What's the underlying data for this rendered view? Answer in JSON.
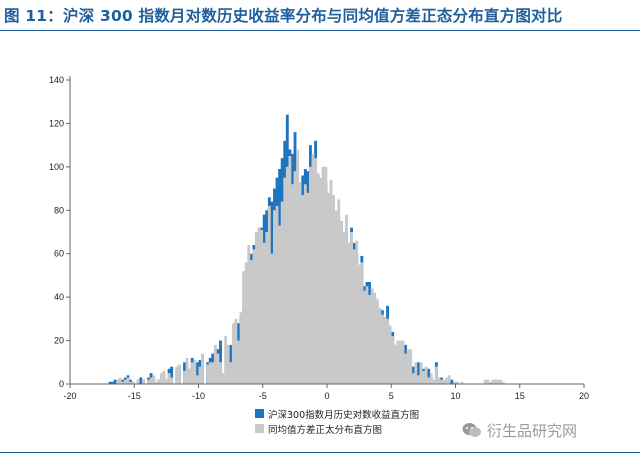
{
  "figure": {
    "title": "图 11：沪深 300 指数月对数历史收益率分布与同均值方差正态分布直方图对比",
    "watermark": "衍生品研究网"
  },
  "colors": {
    "accent": "#1f5f9c",
    "series_hist": "#1f74bf",
    "series_normal": "#c9c9c9",
    "axis": "#666666"
  },
  "chart_data": {
    "type": "bar",
    "title": "",
    "xlabel": "",
    "ylabel": "",
    "xlim": [
      -20,
      20
    ],
    "ylim": [
      0,
      140
    ],
    "xticks": [
      -20,
      -15,
      -10,
      -5,
      0,
      5,
      10,
      15,
      20
    ],
    "yticks": [
      0,
      20,
      40,
      60,
      80,
      100,
      120,
      140
    ],
    "bin_start": -20,
    "bin_width": 0.2,
    "series": [
      {
        "name": "沪深300指数月历史对数收益直方图",
        "values": [
          0,
          0,
          0,
          0,
          0,
          0,
          0,
          0,
          0,
          0,
          0,
          0,
          0,
          0,
          0,
          1,
          1,
          2,
          0,
          1,
          2,
          3,
          4,
          2,
          1,
          0,
          2,
          3,
          2,
          0,
          3,
          5,
          3,
          0,
          2,
          3,
          4,
          2,
          7,
          8,
          0,
          7,
          8,
          0,
          10,
          5,
          7,
          12,
          0,
          10,
          11,
          13,
          0,
          10,
          12,
          14,
          15,
          16,
          20,
          0,
          5,
          17,
          18,
          10,
          27,
          28,
          31,
          35,
          40,
          50,
          60,
          64,
          70,
          72,
          72,
          78,
          80,
          86,
          84,
          90,
          95,
          99,
          104,
          112,
          124,
          108,
          106,
          116,
          101,
          92,
          96,
          99,
          98,
          110,
          100,
          112,
          96,
          88,
          100,
          93,
          86,
          80,
          84,
          75,
          77,
          75,
          70,
          70,
          60,
          72,
          65,
          60,
          50,
          59,
          45,
          47,
          47,
          42,
          40,
          37,
          33,
          34,
          27,
          36,
          21,
          24,
          18,
          17,
          18,
          16,
          18,
          12,
          7,
          8,
          8,
          10,
          8,
          7,
          2,
          7,
          3,
          0,
          10,
          3,
          3,
          1,
          1,
          1,
          2,
          0,
          1,
          0,
          0,
          0,
          0,
          0,
          0,
          0,
          0,
          0,
          0,
          0,
          0,
          0,
          0,
          0,
          0,
          0,
          0,
          0,
          0,
          0,
          0,
          0,
          0,
          0,
          0,
          0,
          0,
          0,
          0,
          0,
          0,
          0,
          0,
          0,
          0,
          0,
          0,
          0,
          0,
          0,
          0,
          0,
          0,
          0,
          0,
          0,
          0,
          0,
          0
        ]
      },
      {
        "name": "同均值方差正太分布直方图",
        "values": [
          0,
          0,
          0,
          0,
          0,
          0,
          0,
          0,
          0,
          0,
          0,
          0,
          0,
          0,
          0,
          0,
          0,
          0,
          2,
          3,
          1,
          2,
          3,
          1,
          1,
          0,
          2,
          0,
          2,
          0,
          2,
          3,
          4,
          1,
          2,
          5,
          6,
          2,
          5,
          3,
          0,
          8,
          9,
          0,
          6,
          12,
          7,
          10,
          11,
          4,
          8,
          14,
          0,
          9,
          10,
          10,
          18,
          14,
          10,
          5,
          22,
          18,
          10,
          28,
          30,
          20,
          33,
          52,
          56,
          64,
          57,
          62,
          70,
          72,
          71,
          65,
          70,
          82,
          60,
          80,
          82,
          73,
          84,
          95,
          100,
          105,
          92,
          98,
          108,
          93,
          87,
          92,
          88,
          100,
          106,
          104,
          97,
          95,
          100,
          100,
          88,
          94,
          87,
          80,
          85,
          75,
          70,
          78,
          65,
          70,
          62,
          66,
          55,
          56,
          43,
          45,
          41,
          44,
          42,
          39,
          35,
          32,
          31,
          30,
          27,
          22,
          18,
          20,
          20,
          20,
          14,
          16,
          16,
          5,
          10,
          4,
          10,
          6,
          8,
          3,
          5,
          2,
          8,
          3,
          2,
          2,
          3,
          4,
          0,
          1,
          1,
          0,
          1,
          0,
          0,
          0,
          0,
          0,
          0,
          0,
          0,
          2,
          2,
          1,
          2,
          2,
          2,
          2,
          1,
          0,
          0,
          0,
          0,
          0,
          0,
          0,
          0,
          0,
          0,
          0,
          0,
          0,
          0,
          0,
          0,
          0,
          0,
          0,
          0,
          0,
          0,
          0,
          0,
          0,
          0,
          0,
          0,
          0,
          0,
          0,
          0
        ]
      }
    ]
  }
}
